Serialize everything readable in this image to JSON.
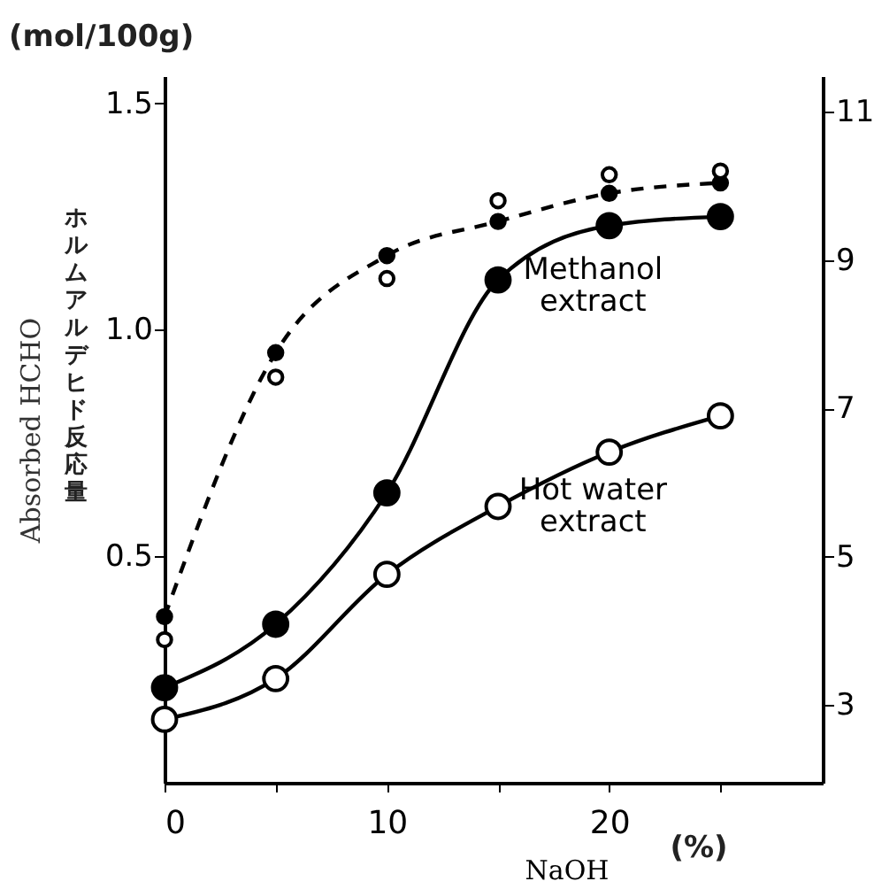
{
  "chart_data": {
    "type": "line",
    "xlabel": "NaOH",
    "ylabel": "Absorbed HCHO",
    "annotations": [
      "(mol/100g)",
      "(%)",
      "ホルムアルデヒド反応量"
    ],
    "x": [
      0,
      5,
      10,
      15,
      20,
      25
    ],
    "xlim": [
      0,
      29.6
    ],
    "xticks": [
      0,
      {
        "value": 5,
        "label": null
      },
      10,
      {
        "value": 15,
        "label": null
      },
      20,
      {
        "value": 25,
        "label": null
      }
    ],
    "ylim": [
      0,
      1.56
    ],
    "yticks": [
      0.5,
      {
        "value": 1,
        "label": "1.0"
      },
      1.5
    ],
    "y2lim": [
      1.95,
      11.48
    ],
    "y2ticks": [
      3,
      5,
      7,
      9,
      11
    ],
    "marker": "circle",
    "line_style": "solid",
    "grid": false,
    "legend": false,
    "series": [
      {
        "name": "Methanol extract",
        "color": "#000000",
        "values": [
          0.21,
          0.35,
          0.64,
          1.11,
          1.23,
          1.25
        ]
      },
      {
        "name": "Hot water extract",
        "color": "#ffffff",
        "values": [
          0.14,
          0.23,
          0.46,
          0.61,
          0.73,
          0.81
        ]
      },
      {
        "axis": "y2",
        "line_style": "dashed",
        "color": "#000000",
        "values": [
          4.19,
          7.75,
          9.06,
          9.52,
          9.9,
          10.04
        ]
      },
      {
        "type": "scatter",
        "axis": "y2",
        "color": "#ffffff",
        "values": [
          3.88,
          7.42,
          8.75,
          9.8,
          10.15,
          10.2
        ]
      }
    ]
  }
}
